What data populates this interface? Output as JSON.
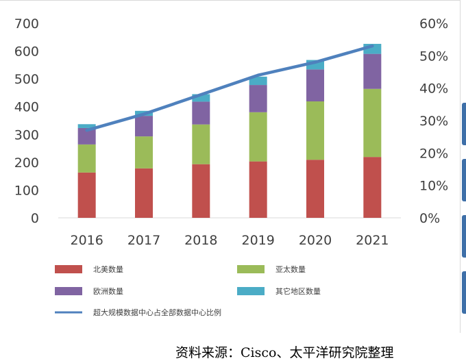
{
  "chart_data": {
    "type": "bar",
    "stacked": true,
    "categories": [
      "2016",
      "2017",
      "2018",
      "2019",
      "2020",
      "2021"
    ],
    "series": [
      {
        "name": "北美数量",
        "values": [
          163,
          178,
          193,
          203,
          209,
          219
        ],
        "color": "#c0504d"
      },
      {
        "name": "亚太数量",
        "values": [
          101,
          115,
          143,
          177,
          210,
          245
        ],
        "color": "#9bbb59"
      },
      {
        "name": "欧洲数量",
        "values": [
          59,
          74,
          82,
          98,
          115,
          126
        ],
        "color": "#8064a2"
      },
      {
        "name": "其它地区数量",
        "values": [
          14,
          18,
          27,
          30,
          34,
          36
        ],
        "color": "#4bacc6"
      }
    ],
    "line_series": {
      "name": "超大规模数据中心占全部数据中心比例",
      "values": [
        27,
        32,
        38,
        44,
        48,
        53
      ],
      "color": "#4f81bd",
      "axis": "right",
      "unit": "%"
    },
    "ylim": [
      0,
      700
    ],
    "y_ticks": [
      "0",
      "100",
      "200",
      "300",
      "400",
      "500",
      "600",
      "700"
    ],
    "y2lim": [
      0,
      60
    ],
    "y2_ticks": [
      "0%",
      "10%",
      "20%",
      "30%",
      "40%",
      "50%",
      "60%"
    ],
    "legend_position": "bottom",
    "grid": false
  },
  "source": "资料来源：Cisco、太平洋研究院整理"
}
